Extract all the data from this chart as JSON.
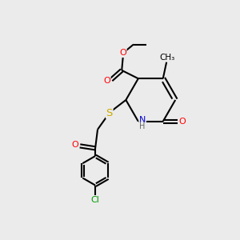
{
  "bg_color": "#ebebeb",
  "bond_color": "#000000",
  "atom_colors": {
    "O": "#ff0000",
    "N": "#0000cc",
    "S": "#ccaa00",
    "Cl": "#009900",
    "C": "#000000",
    "H": "#666666"
  },
  "line_width": 1.5,
  "figsize": [
    3.0,
    3.0
  ],
  "dpi": 100
}
